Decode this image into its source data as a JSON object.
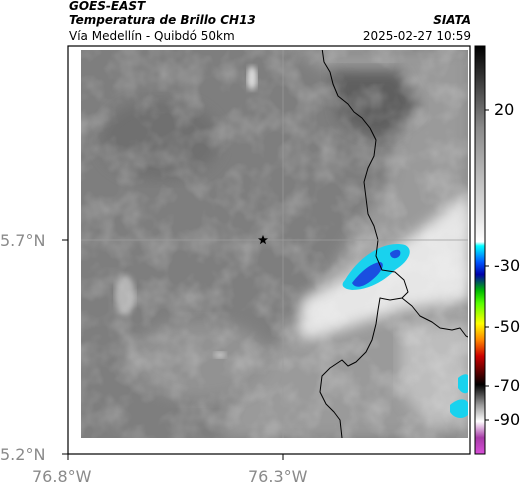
{
  "header": {
    "satellite": "GOES-EAST",
    "product": "Temperatura de Brillo CH13",
    "brand": "SIATA",
    "region": "Vía Medellín - Quibdó 50km",
    "timestamp": "2025-02-27 10:59"
  },
  "map": {
    "lat_labels": [
      "5.7°N",
      "5.2°N"
    ],
    "lon_labels": [
      "76.8°W",
      "76.3°W"
    ],
    "marker": "star-icon"
  },
  "colorbar": {
    "tick_labels": [
      "20",
      "-30",
      "-50",
      "-70",
      "-90"
    ],
    "colors": [
      "#000000",
      "#808080",
      "#ffffff",
      "#00ffff",
      "#0000ff",
      "#00ff00",
      "#ffff00",
      "#ff0000",
      "#000000",
      "#ff00ff"
    ]
  }
}
